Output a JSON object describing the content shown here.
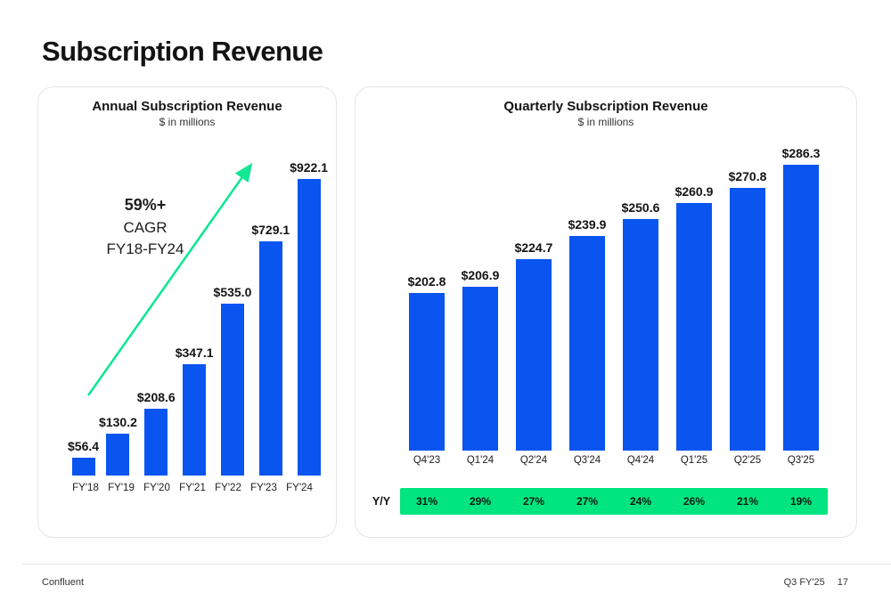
{
  "page": {
    "title": "Subscription Revenue",
    "footer": {
      "brand": "Confluent",
      "period": "Q3 FY'25",
      "page_number": "17"
    }
  },
  "colors": {
    "bar_blue": "#0a55f0",
    "arrow_green": "#12e794",
    "band_green": "#00e57f"
  },
  "chart_data": [
    {
      "type": "bar",
      "title": "Annual Subscription Revenue",
      "subtitle": "$ in millions",
      "categories": [
        "FY'18",
        "FY'19",
        "FY'20",
        "FY'21",
        "FY'22",
        "FY'23",
        "FY'24"
      ],
      "values": [
        56.4,
        130.2,
        208.6,
        347.1,
        535.0,
        729.1,
        922.1
      ],
      "value_labels": [
        "$56.4",
        "$130.2",
        "$208.6",
        "$347.1",
        "$535.0",
        "$729.1",
        "$922.1"
      ],
      "annotation": {
        "line1": "59%+",
        "line2": "CAGR",
        "line3": "FY18-FY24"
      },
      "ylim": [
        0,
        1000
      ],
      "grid": false,
      "legend": "none"
    },
    {
      "type": "bar",
      "title": "Quarterly Subscription Revenue",
      "subtitle": "$ in millions",
      "categories": [
        "Q4'23",
        "Q1'24",
        "Q2'24",
        "Q3'24",
        "Q4'24",
        "Q1'25",
        "Q2'25",
        "Q3'25"
      ],
      "values": [
        202.8,
        206.9,
        224.7,
        239.9,
        250.6,
        260.9,
        270.8,
        286.3
      ],
      "value_labels": [
        "$202.8",
        "$206.9",
        "$224.7",
        "$239.9",
        "$250.6",
        "$260.9",
        "$270.8",
        "$286.3"
      ],
      "yoy_label": "Y/Y",
      "yoy_values": [
        "31%",
        "29%",
        "27%",
        "27%",
        "24%",
        "26%",
        "21%",
        "19%"
      ],
      "ylim": [
        100,
        300
      ],
      "grid": false,
      "legend": "none"
    }
  ]
}
